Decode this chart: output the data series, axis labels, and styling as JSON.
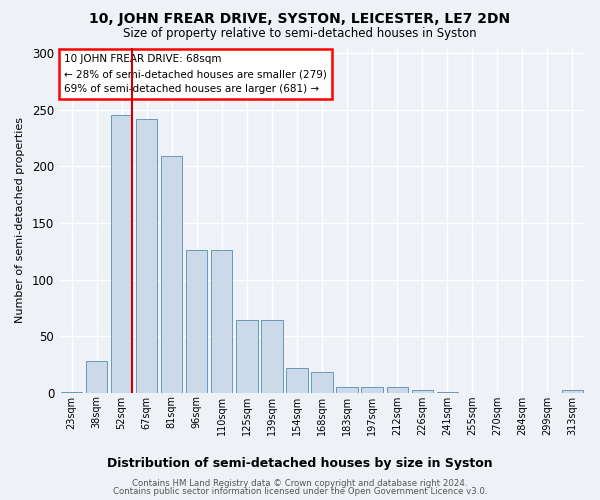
{
  "title": "10, JOHN FREAR DRIVE, SYSTON, LEICESTER, LE7 2DN",
  "subtitle": "Size of property relative to semi-detached houses in Syston",
  "xlabel": "Distribution of semi-detached houses by size in Syston",
  "ylabel": "Number of semi-detached properties",
  "categories": [
    "23sqm",
    "38sqm",
    "52sqm",
    "67sqm",
    "81sqm",
    "96sqm",
    "110sqm",
    "125sqm",
    "139sqm",
    "154sqm",
    "168sqm",
    "183sqm",
    "197sqm",
    "212sqm",
    "226sqm",
    "241sqm",
    "255sqm",
    "270sqm",
    "284sqm",
    "299sqm",
    "313sqm"
  ],
  "values": [
    1,
    28,
    245,
    242,
    209,
    126,
    126,
    64,
    64,
    22,
    18,
    5,
    5,
    5,
    2,
    1,
    0,
    0,
    0,
    0,
    2
  ],
  "highlight_index": 2,
  "bar_color": "#ccd9e8",
  "bar_edge_color": "#6699bb",
  "annotation_text_line1": "10 JOHN FREAR DRIVE: 68sqm",
  "annotation_text_line2": "← 28% of semi-detached houses are smaller (279)",
  "annotation_text_line3": "69% of semi-detached houses are larger (681) →",
  "footer_line1": "Contains HM Land Registry data © Crown copyright and database right 2024.",
  "footer_line2": "Contains public sector information licensed under the Open Government Licence v3.0.",
  "bg_color": "#eef2f7",
  "plot_bg_color": "#eef2f7",
  "grid_color": "#ffffff",
  "vline_color": "#cc0000",
  "ylim": [
    0,
    305
  ],
  "yticks": [
    0,
    50,
    100,
    150,
    200,
    250,
    300
  ]
}
